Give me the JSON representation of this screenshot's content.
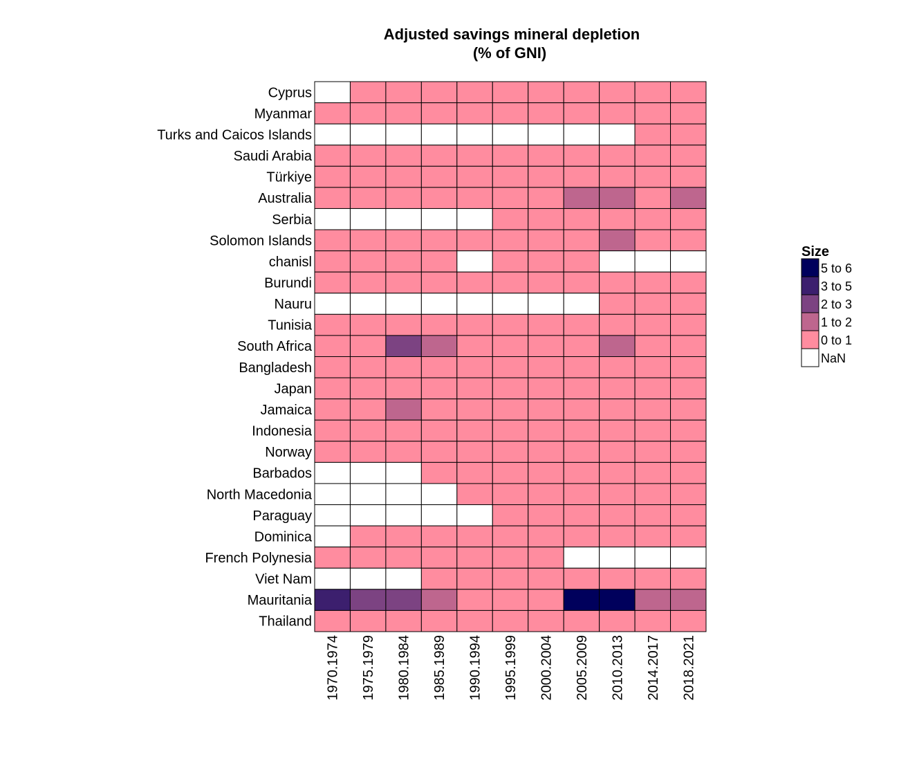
{
  "chart_data": {
    "type": "heatmap",
    "title": "Adjusted savings mineral depletion",
    "subtitle": "(% of GNI)",
    "columns": [
      "1970.1974",
      "1975.1979",
      "1980.1984",
      "1985.1989",
      "1990.1994",
      "1995.1999",
      "2000.2004",
      "2005.2009",
      "2010.2013",
      "2014.2017",
      "2018.2021"
    ],
    "rows": [
      "Cyprus",
      "Myanmar",
      "Turks and Caicos Islands",
      "Saudi Arabia",
      "Türkiye",
      "Australia",
      "Serbia",
      "Solomon Islands",
      "chanisl",
      "Burundi",
      "Nauru",
      "Tunisia",
      "South Africa",
      "Bangladesh",
      "Japan",
      "Jamaica",
      "Indonesia",
      "Norway",
      "Barbados",
      "North Macedonia",
      "Paraguay",
      "Dominica",
      "French Polynesia",
      "Viet Nam",
      "Mauritania",
      "Thailand"
    ],
    "cells": [
      [
        "NaN",
        "0 to 1",
        "0 to 1",
        "0 to 1",
        "0 to 1",
        "0 to 1",
        "0 to 1",
        "0 to 1",
        "0 to 1",
        "0 to 1",
        "0 to 1"
      ],
      [
        "0 to 1",
        "0 to 1",
        "0 to 1",
        "0 to 1",
        "0 to 1",
        "0 to 1",
        "0 to 1",
        "0 to 1",
        "0 to 1",
        "0 to 1",
        "0 to 1"
      ],
      [
        "NaN",
        "NaN",
        "NaN",
        "NaN",
        "NaN",
        "NaN",
        "NaN",
        "NaN",
        "NaN",
        "0 to 1",
        "0 to 1"
      ],
      [
        "0 to 1",
        "0 to 1",
        "0 to 1",
        "0 to 1",
        "0 to 1",
        "0 to 1",
        "0 to 1",
        "0 to 1",
        "0 to 1",
        "0 to 1",
        "0 to 1"
      ],
      [
        "0 to 1",
        "0 to 1",
        "0 to 1",
        "0 to 1",
        "0 to 1",
        "0 to 1",
        "0 to 1",
        "0 to 1",
        "0 to 1",
        "0 to 1",
        "0 to 1"
      ],
      [
        "0 to 1",
        "0 to 1",
        "0 to 1",
        "0 to 1",
        "0 to 1",
        "0 to 1",
        "0 to 1",
        "1 to 2",
        "1 to 2",
        "0 to 1",
        "1 to 2"
      ],
      [
        "NaN",
        "NaN",
        "NaN",
        "NaN",
        "NaN",
        "0 to 1",
        "0 to 1",
        "0 to 1",
        "0 to 1",
        "0 to 1",
        "0 to 1"
      ],
      [
        "0 to 1",
        "0 to 1",
        "0 to 1",
        "0 to 1",
        "0 to 1",
        "0 to 1",
        "0 to 1",
        "0 to 1",
        "1 to 2",
        "0 to 1",
        "0 to 1"
      ],
      [
        "0 to 1",
        "0 to 1",
        "0 to 1",
        "0 to 1",
        "NaN",
        "0 to 1",
        "0 to 1",
        "0 to 1",
        "NaN",
        "NaN",
        "NaN"
      ],
      [
        "0 to 1",
        "0 to 1",
        "0 to 1",
        "0 to 1",
        "0 to 1",
        "0 to 1",
        "0 to 1",
        "0 to 1",
        "0 to 1",
        "0 to 1",
        "0 to 1"
      ],
      [
        "NaN",
        "NaN",
        "NaN",
        "NaN",
        "NaN",
        "NaN",
        "NaN",
        "NaN",
        "0 to 1",
        "0 to 1",
        "0 to 1"
      ],
      [
        "0 to 1",
        "0 to 1",
        "0 to 1",
        "0 to 1",
        "0 to 1",
        "0 to 1",
        "0 to 1",
        "0 to 1",
        "0 to 1",
        "0 to 1",
        "0 to 1"
      ],
      [
        "0 to 1",
        "0 to 1",
        "2 to 3",
        "1 to 2",
        "0 to 1",
        "0 to 1",
        "0 to 1",
        "0 to 1",
        "1 to 2",
        "0 to 1",
        "0 to 1"
      ],
      [
        "0 to 1",
        "0 to 1",
        "0 to 1",
        "0 to 1",
        "0 to 1",
        "0 to 1",
        "0 to 1",
        "0 to 1",
        "0 to 1",
        "0 to 1",
        "0 to 1"
      ],
      [
        "0 to 1",
        "0 to 1",
        "0 to 1",
        "0 to 1",
        "0 to 1",
        "0 to 1",
        "0 to 1",
        "0 to 1",
        "0 to 1",
        "0 to 1",
        "0 to 1"
      ],
      [
        "0 to 1",
        "0 to 1",
        "1 to 2",
        "0 to 1",
        "0 to 1",
        "0 to 1",
        "0 to 1",
        "0 to 1",
        "0 to 1",
        "0 to 1",
        "0 to 1"
      ],
      [
        "0 to 1",
        "0 to 1",
        "0 to 1",
        "0 to 1",
        "0 to 1",
        "0 to 1",
        "0 to 1",
        "0 to 1",
        "0 to 1",
        "0 to 1",
        "0 to 1"
      ],
      [
        "0 to 1",
        "0 to 1",
        "0 to 1",
        "0 to 1",
        "0 to 1",
        "0 to 1",
        "0 to 1",
        "0 to 1",
        "0 to 1",
        "0 to 1",
        "0 to 1"
      ],
      [
        "NaN",
        "NaN",
        "NaN",
        "0 to 1",
        "0 to 1",
        "0 to 1",
        "0 to 1",
        "0 to 1",
        "0 to 1",
        "0 to 1",
        "0 to 1"
      ],
      [
        "NaN",
        "NaN",
        "NaN",
        "NaN",
        "0 to 1",
        "0 to 1",
        "0 to 1",
        "0 to 1",
        "0 to 1",
        "0 to 1",
        "0 to 1"
      ],
      [
        "NaN",
        "NaN",
        "NaN",
        "NaN",
        "NaN",
        "0 to 1",
        "0 to 1",
        "0 to 1",
        "0 to 1",
        "0 to 1",
        "0 to 1"
      ],
      [
        "NaN",
        "0 to 1",
        "0 to 1",
        "0 to 1",
        "0 to 1",
        "0 to 1",
        "0 to 1",
        "0 to 1",
        "0 to 1",
        "0 to 1",
        "0 to 1"
      ],
      [
        "0 to 1",
        "0 to 1",
        "0 to 1",
        "0 to 1",
        "0 to 1",
        "0 to 1",
        "0 to 1",
        "NaN",
        "NaN",
        "NaN",
        "NaN"
      ],
      [
        "NaN",
        "NaN",
        "NaN",
        "0 to 1",
        "0 to 1",
        "0 to 1",
        "0 to 1",
        "0 to 1",
        "0 to 1",
        "0 to 1",
        "0 to 1"
      ],
      [
        "3 to 5",
        "2 to 3",
        "2 to 3",
        "1 to 2",
        "0 to 1",
        "0 to 1",
        "0 to 1",
        "5 to 6",
        "5 to 6",
        "1 to 2",
        "1 to 2"
      ],
      [
        "0 to 1",
        "0 to 1",
        "0 to 1",
        "0 to 1",
        "0 to 1",
        "0 to 1",
        "0 to 1",
        "0 to 1",
        "0 to 1",
        "0 to 1",
        "0 to 1"
      ]
    ],
    "legend": {
      "title": "Size",
      "placement": "right",
      "items": [
        {
          "label": "5 to 6",
          "color": "#00005c"
        },
        {
          "label": "3 to 5",
          "color": "#3c1f6e"
        },
        {
          "label": "2 to 3",
          "color": "#7c4382"
        },
        {
          "label": "1 to 2",
          "color": "#be668e"
        },
        {
          "label": "0 to 1",
          "color": "#ff8c9f"
        },
        {
          "label": "NaN",
          "color": "#ffffff"
        }
      ]
    },
    "grid": true
  }
}
